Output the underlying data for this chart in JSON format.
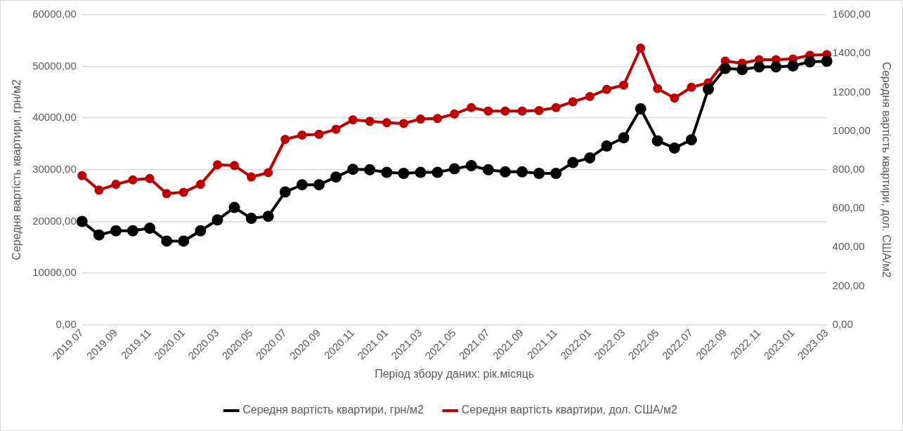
{
  "chart_data": {
    "type": "line",
    "xlabel": "Період збору даних: рік.місяць",
    "ylabel": "Середня вартість квартири, грн/м2",
    "y2label": "Середня вартість квартири, дол. США/м2",
    "categories": [
      "2019.07",
      null,
      "2019.09",
      null,
      "2019.11",
      null,
      "2020.01",
      null,
      "2020.03",
      null,
      "2020.05",
      null,
      "2020.07",
      null,
      "2020.09",
      null,
      "2020.11",
      null,
      "2021.01",
      null,
      "2021.03",
      null,
      "2021.05",
      null,
      "2021.07",
      null,
      "2021.09",
      null,
      "2021.11",
      null,
      "2022.01",
      null,
      "2022.03",
      null,
      "2022.05",
      null,
      "2022.07",
      null,
      "2022.09",
      null,
      "2022.11",
      null,
      "2023.01",
      null,
      "2023.03"
    ],
    "series": [
      {
        "name": "Середня вартість квартири, грн/м2",
        "color": "#000000",
        "values": [
          20000,
          17400,
          18200,
          18200,
          18700,
          16200,
          16200,
          18200,
          20300,
          22700,
          20600,
          21000,
          25700,
          27100,
          27100,
          28600,
          30100,
          30000,
          29500,
          29300,
          29500,
          29500,
          30200,
          30800,
          30000,
          29600,
          29600,
          29300,
          29300,
          31400,
          32300,
          34600,
          36200,
          41800,
          35600,
          34200,
          35800,
          45600,
          49600,
          49400,
          49900,
          49900,
          50100,
          50900,
          51000
        ]
      },
      {
        "name": "Середня вартість квартири, дол. США/м2",
        "color": "#c00000",
        "axis": "y2",
        "values": [
          770,
          695,
          725,
          748,
          755,
          677,
          684,
          725,
          826,
          822,
          763,
          785,
          957,
          979,
          983,
          1009,
          1058,
          1050,
          1043,
          1039,
          1062,
          1065,
          1088,
          1121,
          1103,
          1103,
          1103,
          1106,
          1121,
          1151,
          1178,
          1215,
          1237,
          1428,
          1219,
          1170,
          1226,
          1249,
          1361,
          1350,
          1368,
          1368,
          1372,
          1391,
          1394
        ]
      }
    ],
    "ylim": [
      0,
      60000
    ],
    "yticks": [
      {
        "value": 0,
        "label": "0,00"
      },
      {
        "value": 10000,
        "label": "10000,00"
      },
      {
        "value": 20000,
        "label": "20000,00"
      },
      {
        "value": 30000,
        "label": "30000,00"
      },
      {
        "value": 40000,
        "label": "40000,00"
      },
      {
        "value": 50000,
        "label": "50000,00"
      },
      {
        "value": 60000,
        "label": "60000,00"
      }
    ],
    "y2lim": [
      0,
      1600
    ],
    "y2ticks": [
      {
        "value": 0,
        "label": "0,00"
      },
      {
        "value": 200,
        "label": "200,00"
      },
      {
        "value": 400,
        "label": "400,00"
      },
      {
        "value": 600,
        "label": "600,00"
      },
      {
        "value": 800,
        "label": "800,00"
      },
      {
        "value": 1000,
        "label": "1000,00"
      },
      {
        "value": 1200,
        "label": "1200,00"
      },
      {
        "value": 1400,
        "label": "1400,00"
      },
      {
        "value": 1600,
        "label": "1600,00"
      }
    ],
    "grid": "y",
    "legend": "bottom",
    "marker": "circle",
    "line_style": "solid"
  }
}
